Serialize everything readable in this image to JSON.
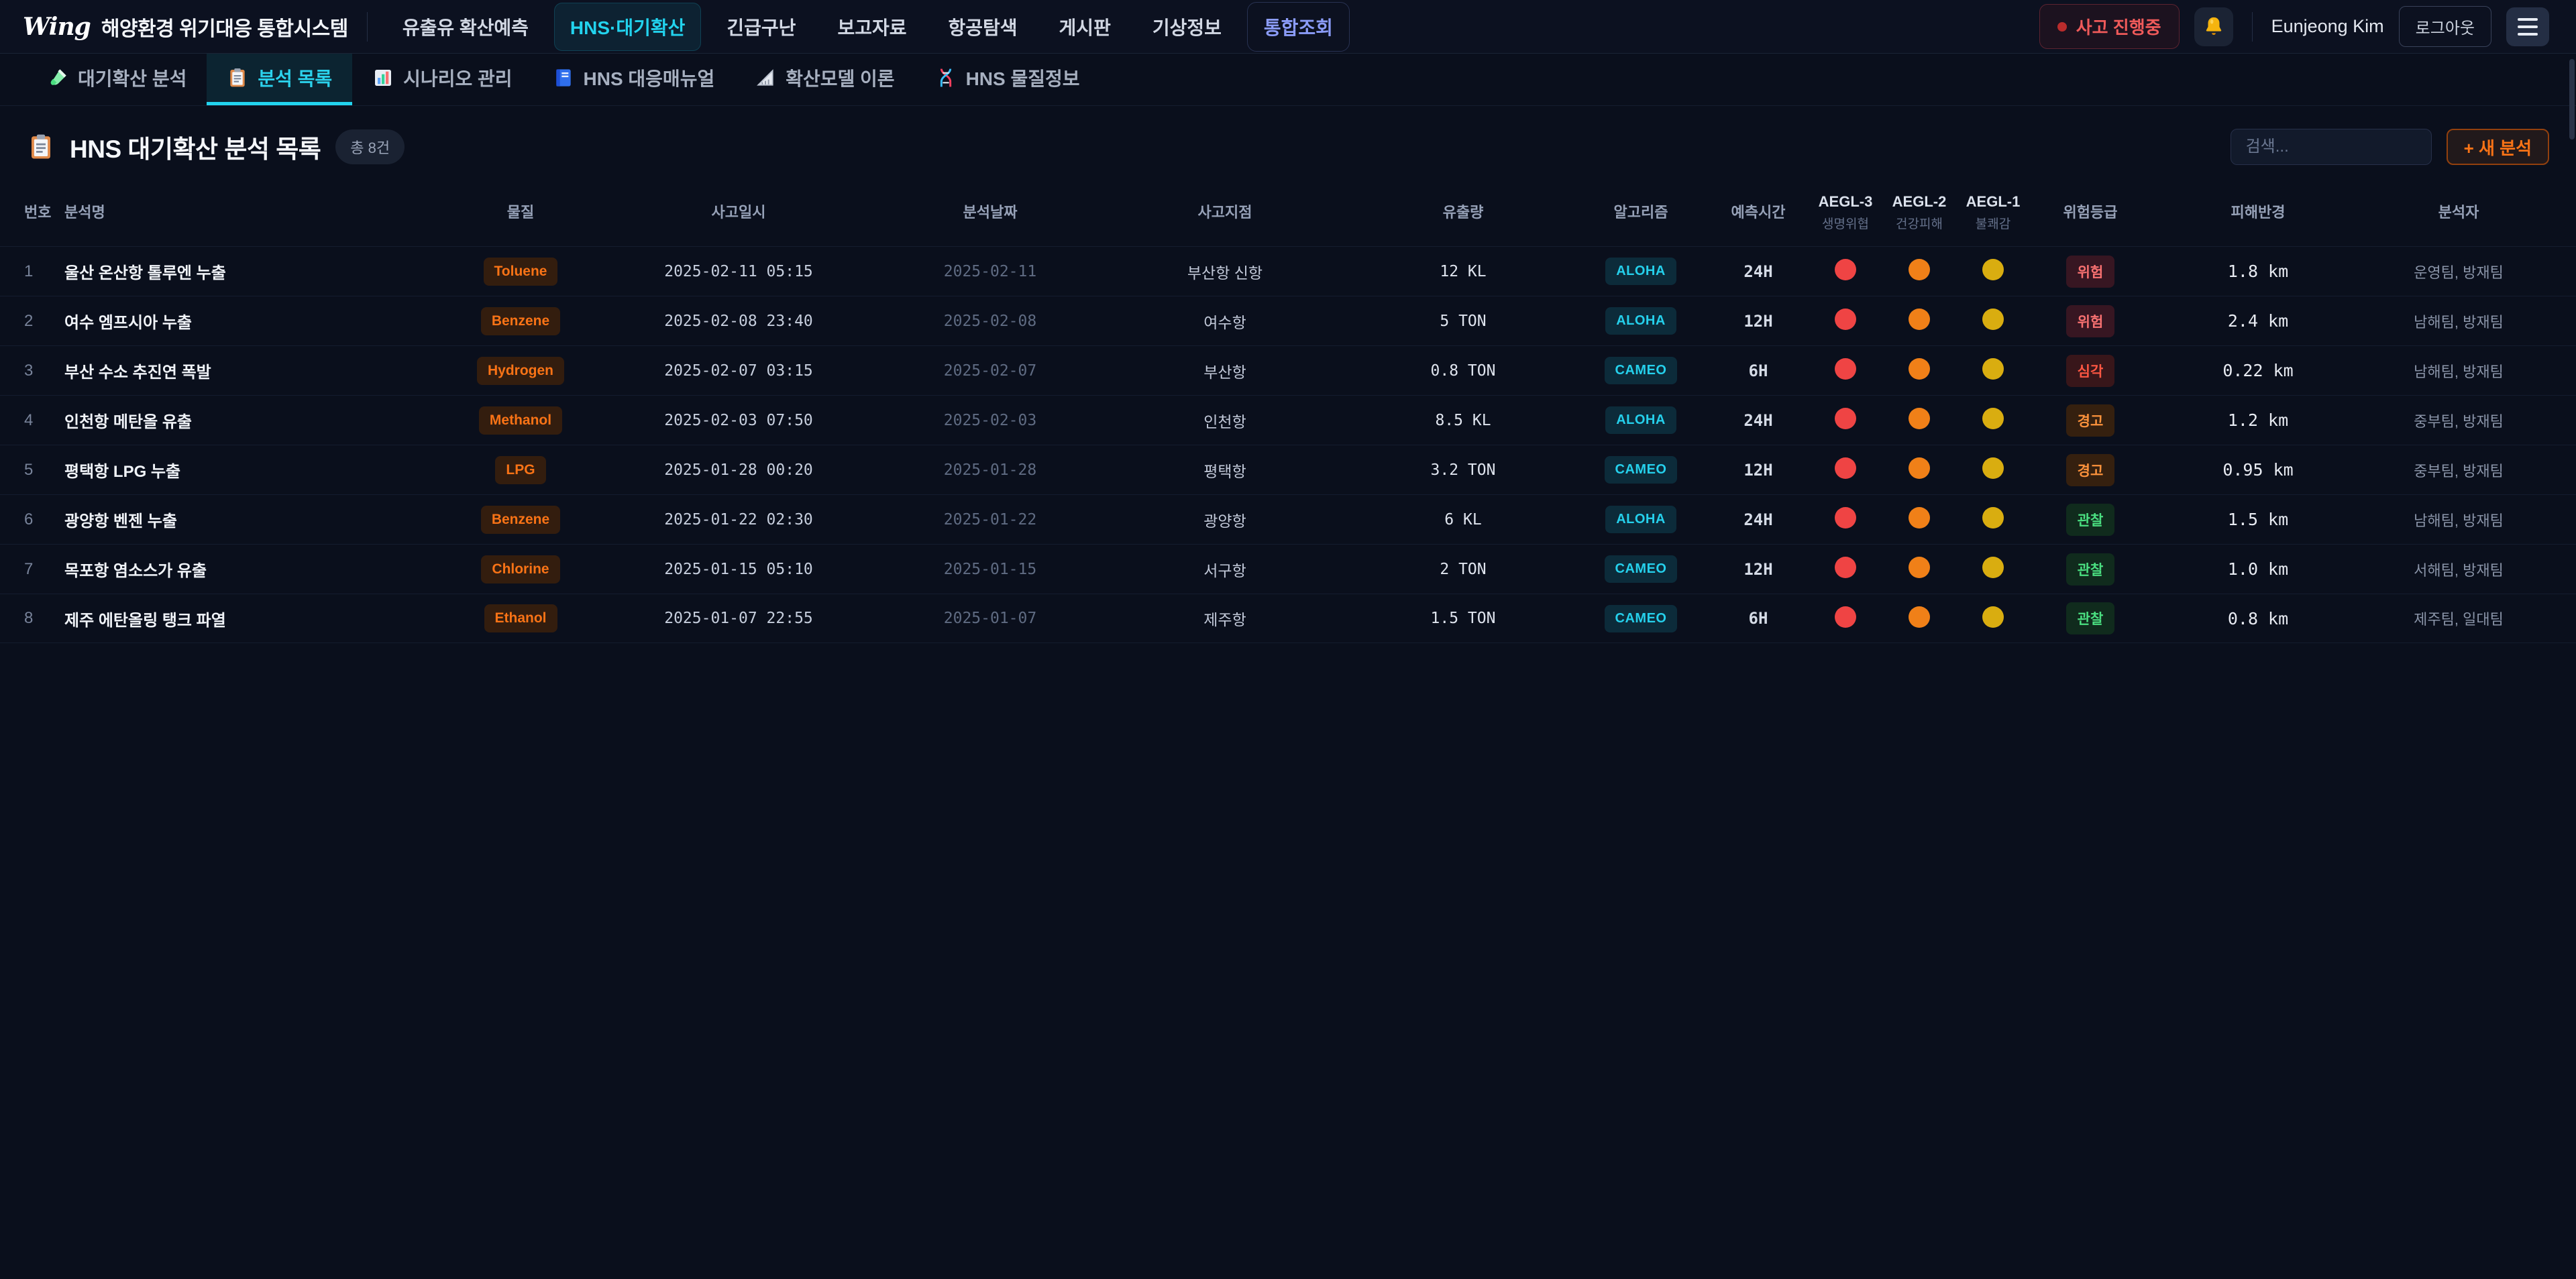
{
  "app": {
    "logo_script": "Wing",
    "logo_title": "해양환경 위기대응 통합시스템"
  },
  "topnav": {
    "items": [
      {
        "label": "유출유 확산예측"
      },
      {
        "label": "HNS·대기확산",
        "active": true
      },
      {
        "label": "긴급구난"
      },
      {
        "label": "보고자료"
      },
      {
        "label": "항공탐색"
      },
      {
        "label": "게시판"
      },
      {
        "label": "기상정보"
      },
      {
        "label": "통합조회",
        "variant": "link"
      }
    ]
  },
  "topbar_right": {
    "incident_badge": "사고 진행중",
    "bell_icon": "bell-icon",
    "user_name": "Eunjeong Kim",
    "logout_label": "로그아웃",
    "menu_icon": "hamburger-icon"
  },
  "tabs": [
    {
      "label": "대기확산 분석",
      "icon": "test-tube-icon"
    },
    {
      "label": "분석 목록",
      "icon": "clipboard-icon",
      "active": true
    },
    {
      "label": "시나리오 관리",
      "icon": "bar-chart-icon"
    },
    {
      "label": "HNS 대응매뉴얼",
      "icon": "book-icon"
    },
    {
      "label": "확산모델 이론",
      "icon": "ruler-icon"
    },
    {
      "label": "HNS 물질정보",
      "icon": "dna-icon"
    }
  ],
  "page": {
    "title_icon": "clipboard-icon",
    "title": "HNS 대기확산 분석 목록",
    "count_badge": "총 8건",
    "search_placeholder": "검색...",
    "new_button_label": "+ 새 분석"
  },
  "table": {
    "columns": [
      {
        "label": "번호",
        "align": "left"
      },
      {
        "label": "분석명",
        "align": "left"
      },
      {
        "label": "물질"
      },
      {
        "label": "사고일시"
      },
      {
        "label": "분석날짜"
      },
      {
        "label": "사고지점"
      },
      {
        "label": "유출량"
      },
      {
        "label": "알고리즘"
      },
      {
        "label": "예측시간"
      },
      {
        "label": "AEGL-3",
        "sub": "생명위협",
        "aegl": true
      },
      {
        "label": "AEGL-2",
        "sub": "건강피해",
        "aegl": true
      },
      {
        "label": "AEGL-1",
        "sub": "불쾌감",
        "aegl": true
      },
      {
        "label": "위험등급"
      },
      {
        "label": "피해반경"
      },
      {
        "label": "분석자"
      }
    ],
    "aegl_colors": [
      "#ef4444",
      "#f08018",
      "#d9ad10"
    ],
    "rows": [
      {
        "no": "1",
        "name": "울산 온산항 톨루엔 누출",
        "substance": "Toluene",
        "incident_at": "2025-02-11 05:15",
        "analyzed_on": "2025-02-11",
        "location": "부산항 신항",
        "amount": "12 KL",
        "algorithm": "ALOHA",
        "forecast": "24H",
        "risk": "위험",
        "risk_level": "danger",
        "radius": "1.8 km",
        "analyst": "운영팀, 방재팀"
      },
      {
        "no": "2",
        "name": "여수 엠프시아 누출",
        "substance": "Benzene",
        "incident_at": "2025-02-08 23:40",
        "analyzed_on": "2025-02-08",
        "location": "여수항",
        "amount": "5 TON",
        "algorithm": "ALOHA",
        "forecast": "12H",
        "risk": "위험",
        "risk_level": "danger",
        "radius": "2.4 km",
        "analyst": "남해팀, 방재팀"
      },
      {
        "no": "3",
        "name": "부산 수소 추진연 폭발",
        "substance": "Hydrogen",
        "incident_at": "2025-02-07 03:15",
        "analyzed_on": "2025-02-07",
        "location": "부산항",
        "amount": "0.8 TON",
        "algorithm": "CAMEO",
        "forecast": "6H",
        "risk": "심각",
        "risk_level": "severe",
        "radius": "0.22 km",
        "analyst": "남해팀, 방재팀"
      },
      {
        "no": "4",
        "name": "인천항 메탄올 유출",
        "substance": "Methanol",
        "incident_at": "2025-02-03 07:50",
        "analyzed_on": "2025-02-03",
        "location": "인천항",
        "amount": "8.5 KL",
        "algorithm": "ALOHA",
        "forecast": "24H",
        "risk": "경고",
        "risk_level": "warning",
        "radius": "1.2 km",
        "analyst": "중부팀, 방재팀"
      },
      {
        "no": "5",
        "name": "평택항 LPG 누출",
        "substance": "LPG",
        "incident_at": "2025-01-28 00:20",
        "analyzed_on": "2025-01-28",
        "location": "평택항",
        "amount": "3.2 TON",
        "algorithm": "CAMEO",
        "forecast": "12H",
        "risk": "경고",
        "risk_level": "warning",
        "radius": "0.95 km",
        "analyst": "중부팀, 방재팀"
      },
      {
        "no": "6",
        "name": "광양항 벤젠 누출",
        "substance": "Benzene",
        "incident_at": "2025-01-22 02:30",
        "analyzed_on": "2025-01-22",
        "location": "광양항",
        "amount": "6 KL",
        "algorithm": "ALOHA",
        "forecast": "24H",
        "risk": "관찰",
        "risk_level": "observe",
        "radius": "1.5 km",
        "analyst": "남해팀, 방재팀"
      },
      {
        "no": "7",
        "name": "목포항 염소스가 유출",
        "substance": "Chlorine",
        "incident_at": "2025-01-15 05:10",
        "analyzed_on": "2025-01-15",
        "location": "서구항",
        "amount": "2 TON",
        "algorithm": "CAMEO",
        "forecast": "12H",
        "risk": "관찰",
        "risk_level": "observe",
        "radius": "1.0 km",
        "analyst": "서해팀, 방재팀"
      },
      {
        "no": "8",
        "name": "제주 에탄올링 탱크 파열",
        "substance": "Ethanol",
        "incident_at": "2025-01-07 22:55",
        "analyzed_on": "2025-01-07",
        "location": "제주항",
        "amount": "1.5 TON",
        "algorithm": "CAMEO",
        "forecast": "6H",
        "risk": "관찰",
        "risk_level": "observe",
        "radius": "0.8 km",
        "analyst": "제주팀, 일대팀"
      }
    ]
  },
  "colors": {
    "accent_cyan": "#22d3ee",
    "accent_orange": "#f97316",
    "accent_indigo": "#8b9cf8",
    "alert_red": "#ef5a5a"
  }
}
